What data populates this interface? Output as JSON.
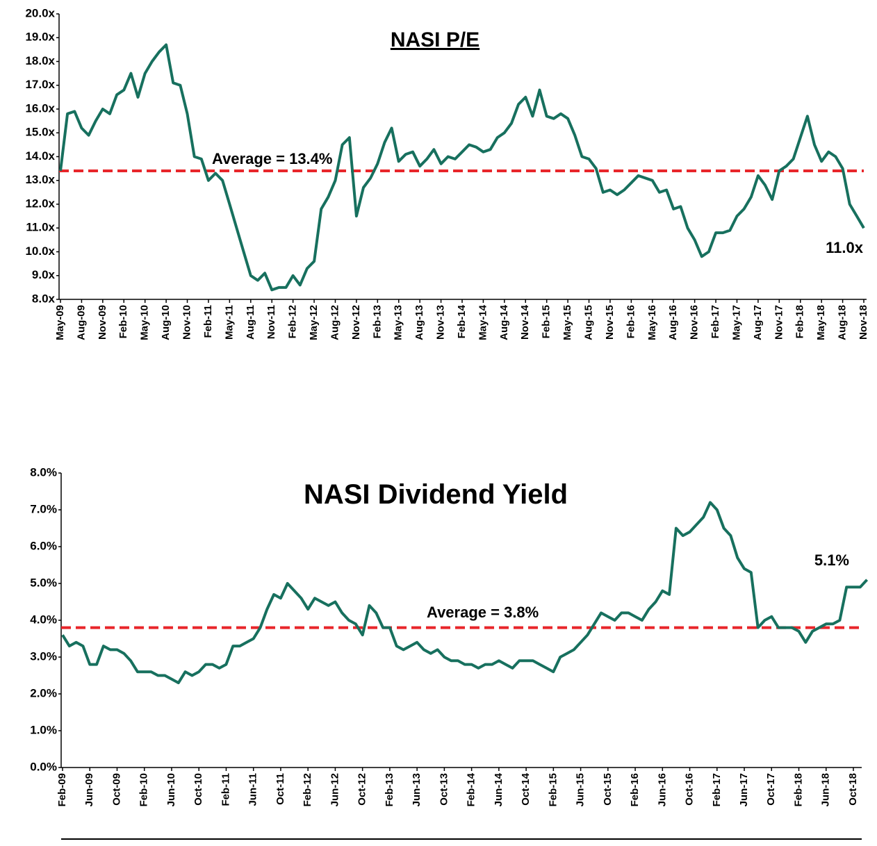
{
  "chart_data": [
    {
      "type": "line",
      "title": "NASI P/E",
      "color": "#17705e",
      "average_color": "#e8262b",
      "categories": [
        "May-09",
        null,
        null,
        "Aug-09",
        null,
        null,
        "Nov-09",
        null,
        null,
        "Feb-10",
        null,
        null,
        "May-10",
        null,
        null,
        "Aug-10",
        null,
        null,
        "Nov-10",
        null,
        null,
        "Feb-11",
        null,
        null,
        "May-11",
        null,
        null,
        "Aug-11",
        null,
        null,
        "Nov-11",
        null,
        null,
        "Feb-12",
        null,
        null,
        "May-12",
        null,
        null,
        "Aug-12",
        null,
        null,
        "Nov-12",
        null,
        null,
        "Feb-13",
        null,
        null,
        "May-13",
        null,
        null,
        "Aug-13",
        null,
        null,
        "Nov-13",
        null,
        null,
        "Feb-14",
        null,
        null,
        "May-14",
        null,
        null,
        "Aug-14",
        null,
        null,
        "Nov-14",
        null,
        null,
        "Feb-15",
        null,
        null,
        "May-15",
        null,
        null,
        "Aug-15",
        null,
        null,
        "Nov-15",
        null,
        null,
        "Feb-16",
        null,
        null,
        "May-16",
        null,
        null,
        "Aug-16",
        null,
        null,
        "Nov-16",
        null,
        null,
        "Feb-17",
        null,
        null,
        "May-17",
        null,
        null,
        "Aug-17",
        null,
        null,
        "Nov-17",
        null,
        null,
        "Feb-18",
        null,
        null,
        "May-18",
        null,
        null,
        "Aug-18",
        null,
        null,
        "Nov-18"
      ],
      "values": [
        13.4,
        15.8,
        15.9,
        15.2,
        14.9,
        15.5,
        16.0,
        15.8,
        16.6,
        16.8,
        17.5,
        16.5,
        17.5,
        18.0,
        18.4,
        18.7,
        17.1,
        17.0,
        15.8,
        14.0,
        13.9,
        13.0,
        13.3,
        13.0,
        12.0,
        11.0,
        10.0,
        9.0,
        8.8,
        9.1,
        8.4,
        8.5,
        8.5,
        9.0,
        8.6,
        9.3,
        9.6,
        11.8,
        12.3,
        13.0,
        14.5,
        14.8,
        11.5,
        12.7,
        13.1,
        13.7,
        14.6,
        15.2,
        13.8,
        14.1,
        14.2,
        13.6,
        13.9,
        14.3,
        13.7,
        14.0,
        13.9,
        14.2,
        14.5,
        14.4,
        14.2,
        14.3,
        14.8,
        15.0,
        15.4,
        16.2,
        16.5,
        15.7,
        16.8,
        15.7,
        15.6,
        15.8,
        15.6,
        14.9,
        14.0,
        13.9,
        13.5,
        12.5,
        12.6,
        12.4,
        12.6,
        12.9,
        13.2,
        13.1,
        13.0,
        12.5,
        12.6,
        11.8,
        11.9,
        11.0,
        10.5,
        9.8,
        10.0,
        10.8,
        10.8,
        10.9,
        11.5,
        11.8,
        12.3,
        13.2,
        12.8,
        12.2,
        13.4,
        13.6,
        13.9,
        14.8,
        15.7,
        14.5,
        13.8,
        14.2,
        14.0,
        13.5,
        12.0,
        11.5,
        11.0
      ],
      "ylim": [
        8,
        20
      ],
      "yticks": [
        {
          "value": 8,
          "label": "8.0x"
        },
        {
          "value": 9,
          "label": "9.0x"
        },
        {
          "value": 10,
          "label": "10.0x"
        },
        {
          "value": 11,
          "label": "11.0x"
        },
        {
          "value": 12,
          "label": "12.0x"
        },
        {
          "value": 13,
          "label": "13.0x"
        },
        {
          "value": 14,
          "label": "14.0x"
        },
        {
          "value": 15,
          "label": "15.0x"
        },
        {
          "value": 16,
          "label": "16.0x"
        },
        {
          "value": 17,
          "label": "17.0x"
        },
        {
          "value": 18,
          "label": "18.0x"
        },
        {
          "value": 19,
          "label": "19.0x"
        },
        {
          "value": 20,
          "label": "20.0x"
        }
      ],
      "average": {
        "value": 13.4,
        "label": "Average = 13.4%"
      },
      "end_label": "11.0x"
    },
    {
      "type": "line",
      "title": "NASI Dividend Yield",
      "color": "#17705e",
      "average_color": "#e8262b",
      "categories": [
        "Feb-09",
        null,
        null,
        null,
        "Jun-09",
        null,
        null,
        null,
        "Oct-09",
        null,
        null,
        null,
        "Feb-10",
        null,
        null,
        null,
        "Jun-10",
        null,
        null,
        null,
        "Oct-10",
        null,
        null,
        null,
        "Feb-11",
        null,
        null,
        null,
        "Jun-11",
        null,
        null,
        null,
        "Oct-11",
        null,
        null,
        null,
        "Feb-12",
        null,
        null,
        null,
        "Jun-12",
        null,
        null,
        null,
        "Oct-12",
        null,
        null,
        null,
        "Feb-13",
        null,
        null,
        null,
        "Jun-13",
        null,
        null,
        null,
        "Oct-13",
        null,
        null,
        null,
        "Feb-14",
        null,
        null,
        null,
        "Jun-14",
        null,
        null,
        null,
        "Oct-14",
        null,
        null,
        null,
        "Feb-15",
        null,
        null,
        null,
        "Jun-15",
        null,
        null,
        null,
        "Oct-15",
        null,
        null,
        null,
        "Feb-16",
        null,
        null,
        null,
        "Jun-16",
        null,
        null,
        null,
        "Oct-16",
        null,
        null,
        null,
        "Feb-17",
        null,
        null,
        null,
        "Jun-17",
        null,
        null,
        null,
        "Oct-17",
        null,
        null,
        null,
        "Feb-18",
        null,
        null,
        null,
        "Jun-18",
        null,
        null,
        null,
        "Oct-18",
        null,
        null
      ],
      "values": [
        3.6,
        3.3,
        3.4,
        3.3,
        2.8,
        2.8,
        3.3,
        3.2,
        3.2,
        3.1,
        2.9,
        2.6,
        2.6,
        2.6,
        2.5,
        2.5,
        2.4,
        2.3,
        2.6,
        2.5,
        2.6,
        2.8,
        2.8,
        2.7,
        2.8,
        3.3,
        3.3,
        3.4,
        3.5,
        3.8,
        4.3,
        4.7,
        4.6,
        5.0,
        4.8,
        4.6,
        4.3,
        4.6,
        4.5,
        4.4,
        4.5,
        4.2,
        4.0,
        3.9,
        3.6,
        4.4,
        4.2,
        3.8,
        3.8,
        3.3,
        3.2,
        3.3,
        3.4,
        3.2,
        3.1,
        3.2,
        3.0,
        2.9,
        2.9,
        2.8,
        2.8,
        2.7,
        2.8,
        2.8,
        2.9,
        2.8,
        2.7,
        2.9,
        2.9,
        2.9,
        2.8,
        2.7,
        2.6,
        3.0,
        3.1,
        3.2,
        3.4,
        3.6,
        3.9,
        4.2,
        4.1,
        4.0,
        4.2,
        4.2,
        4.1,
        4.0,
        4.3,
        4.5,
        4.8,
        4.7,
        6.5,
        6.3,
        6.4,
        6.6,
        6.8,
        7.2,
        7.0,
        6.5,
        6.3,
        5.7,
        5.4,
        5.3,
        3.8,
        4.0,
        4.1,
        3.8,
        3.8,
        3.8,
        3.7,
        3.4,
        3.7,
        3.8,
        3.9,
        3.9,
        4.0,
        4.9,
        4.9,
        4.9,
        5.1
      ],
      "ylim": [
        0,
        8
      ],
      "yticks": [
        {
          "value": 0,
          "label": "0.0%"
        },
        {
          "value": 1,
          "label": "1.0%"
        },
        {
          "value": 2,
          "label": "2.0%"
        },
        {
          "value": 3,
          "label": "3.0%"
        },
        {
          "value": 4,
          "label": "4.0%"
        },
        {
          "value": 5,
          "label": "5.0%"
        },
        {
          "value": 6,
          "label": "6.0%"
        },
        {
          "value": 7,
          "label": "7.0%"
        },
        {
          "value": 8,
          "label": "8.0%"
        }
      ],
      "average": {
        "value": 3.8,
        "label": "Average = 3.8%"
      },
      "end_label": "5.1%"
    }
  ]
}
